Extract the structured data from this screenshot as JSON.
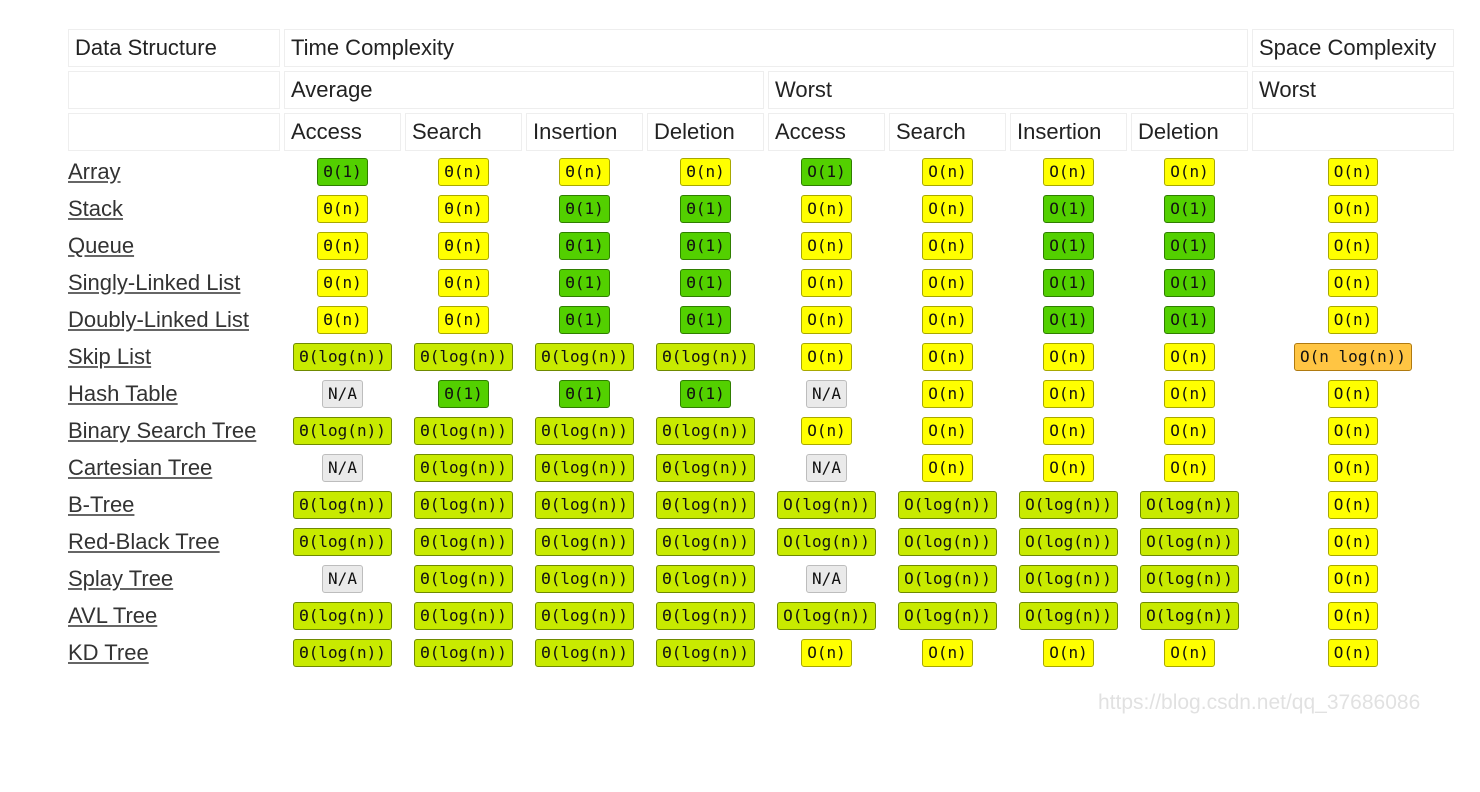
{
  "header": {
    "data_structure": "Data Structure",
    "time_complexity": "Time Complexity",
    "space_complexity": "Space Complexity",
    "average": "Average",
    "worst": "Worst",
    "space_worst": "Worst",
    "ops": [
      "Access",
      "Search",
      "Insertion",
      "Deletion",
      "Access",
      "Search",
      "Insertion",
      "Deletion"
    ]
  },
  "colors": {
    "green": "#53d000",
    "yellow": "#ffff00",
    "yellow_green": "#c8ea00",
    "orange": "#ffc543",
    "gray": "#eaeaea"
  },
  "rows": [
    {
      "name": "Array",
      "cells": [
        [
          "Θ(1)",
          "green"
        ],
        [
          "Θ(n)",
          "yellow"
        ],
        [
          "Θ(n)",
          "yellow"
        ],
        [
          "Θ(n)",
          "yellow"
        ],
        [
          "O(1)",
          "green"
        ],
        [
          "O(n)",
          "yellow"
        ],
        [
          "O(n)",
          "yellow"
        ],
        [
          "O(n)",
          "yellow"
        ],
        [
          "O(n)",
          "yellow"
        ]
      ]
    },
    {
      "name": "Stack",
      "cells": [
        [
          "Θ(n)",
          "yellow"
        ],
        [
          "Θ(n)",
          "yellow"
        ],
        [
          "Θ(1)",
          "green"
        ],
        [
          "Θ(1)",
          "green"
        ],
        [
          "O(n)",
          "yellow"
        ],
        [
          "O(n)",
          "yellow"
        ],
        [
          "O(1)",
          "green"
        ],
        [
          "O(1)",
          "green"
        ],
        [
          "O(n)",
          "yellow"
        ]
      ]
    },
    {
      "name": "Queue",
      "cells": [
        [
          "Θ(n)",
          "yellow"
        ],
        [
          "Θ(n)",
          "yellow"
        ],
        [
          "Θ(1)",
          "green"
        ],
        [
          "Θ(1)",
          "green"
        ],
        [
          "O(n)",
          "yellow"
        ],
        [
          "O(n)",
          "yellow"
        ],
        [
          "O(1)",
          "green"
        ],
        [
          "O(1)",
          "green"
        ],
        [
          "O(n)",
          "yellow"
        ]
      ]
    },
    {
      "name": "Singly-Linked List",
      "cells": [
        [
          "Θ(n)",
          "yellow"
        ],
        [
          "Θ(n)",
          "yellow"
        ],
        [
          "Θ(1)",
          "green"
        ],
        [
          "Θ(1)",
          "green"
        ],
        [
          "O(n)",
          "yellow"
        ],
        [
          "O(n)",
          "yellow"
        ],
        [
          "O(1)",
          "green"
        ],
        [
          "O(1)",
          "green"
        ],
        [
          "O(n)",
          "yellow"
        ]
      ]
    },
    {
      "name": "Doubly-Linked List",
      "cells": [
        [
          "Θ(n)",
          "yellow"
        ],
        [
          "Θ(n)",
          "yellow"
        ],
        [
          "Θ(1)",
          "green"
        ],
        [
          "Θ(1)",
          "green"
        ],
        [
          "O(n)",
          "yellow"
        ],
        [
          "O(n)",
          "yellow"
        ],
        [
          "O(1)",
          "green"
        ],
        [
          "O(1)",
          "green"
        ],
        [
          "O(n)",
          "yellow"
        ]
      ]
    },
    {
      "name": "Skip List",
      "cells": [
        [
          "Θ(log(n))",
          "yg"
        ],
        [
          "Θ(log(n))",
          "yg"
        ],
        [
          "Θ(log(n))",
          "yg"
        ],
        [
          "Θ(log(n))",
          "yg"
        ],
        [
          "O(n)",
          "yellow"
        ],
        [
          "O(n)",
          "yellow"
        ],
        [
          "O(n)",
          "yellow"
        ],
        [
          "O(n)",
          "yellow"
        ],
        [
          "O(n log(n))",
          "orange"
        ]
      ]
    },
    {
      "name": "Hash Table",
      "cells": [
        [
          "N/A",
          "gray"
        ],
        [
          "Θ(1)",
          "green"
        ],
        [
          "Θ(1)",
          "green"
        ],
        [
          "Θ(1)",
          "green"
        ],
        [
          "N/A",
          "gray"
        ],
        [
          "O(n)",
          "yellow"
        ],
        [
          "O(n)",
          "yellow"
        ],
        [
          "O(n)",
          "yellow"
        ],
        [
          "O(n)",
          "yellow"
        ]
      ]
    },
    {
      "name": "Binary Search Tree",
      "cells": [
        [
          "Θ(log(n))",
          "yg"
        ],
        [
          "Θ(log(n))",
          "yg"
        ],
        [
          "Θ(log(n))",
          "yg"
        ],
        [
          "Θ(log(n))",
          "yg"
        ],
        [
          "O(n)",
          "yellow"
        ],
        [
          "O(n)",
          "yellow"
        ],
        [
          "O(n)",
          "yellow"
        ],
        [
          "O(n)",
          "yellow"
        ],
        [
          "O(n)",
          "yellow"
        ]
      ]
    },
    {
      "name": "Cartesian Tree",
      "cells": [
        [
          "N/A",
          "gray"
        ],
        [
          "Θ(log(n))",
          "yg"
        ],
        [
          "Θ(log(n))",
          "yg"
        ],
        [
          "Θ(log(n))",
          "yg"
        ],
        [
          "N/A",
          "gray"
        ],
        [
          "O(n)",
          "yellow"
        ],
        [
          "O(n)",
          "yellow"
        ],
        [
          "O(n)",
          "yellow"
        ],
        [
          "O(n)",
          "yellow"
        ]
      ]
    },
    {
      "name": "B-Tree",
      "cells": [
        [
          "Θ(log(n))",
          "yg"
        ],
        [
          "Θ(log(n))",
          "yg"
        ],
        [
          "Θ(log(n))",
          "yg"
        ],
        [
          "Θ(log(n))",
          "yg"
        ],
        [
          "O(log(n))",
          "yg"
        ],
        [
          "O(log(n))",
          "yg"
        ],
        [
          "O(log(n))",
          "yg"
        ],
        [
          "O(log(n))",
          "yg"
        ],
        [
          "O(n)",
          "yellow"
        ]
      ]
    },
    {
      "name": "Red-Black Tree",
      "cells": [
        [
          "Θ(log(n))",
          "yg"
        ],
        [
          "Θ(log(n))",
          "yg"
        ],
        [
          "Θ(log(n))",
          "yg"
        ],
        [
          "Θ(log(n))",
          "yg"
        ],
        [
          "O(log(n))",
          "yg"
        ],
        [
          "O(log(n))",
          "yg"
        ],
        [
          "O(log(n))",
          "yg"
        ],
        [
          "O(log(n))",
          "yg"
        ],
        [
          "O(n)",
          "yellow"
        ]
      ]
    },
    {
      "name": "Splay Tree",
      "cells": [
        [
          "N/A",
          "gray"
        ],
        [
          "Θ(log(n))",
          "yg"
        ],
        [
          "Θ(log(n))",
          "yg"
        ],
        [
          "Θ(log(n))",
          "yg"
        ],
        [
          "N/A",
          "gray"
        ],
        [
          "O(log(n))",
          "yg"
        ],
        [
          "O(log(n))",
          "yg"
        ],
        [
          "O(log(n))",
          "yg"
        ],
        [
          "O(n)",
          "yellow"
        ]
      ]
    },
    {
      "name": "AVL Tree",
      "cells": [
        [
          "Θ(log(n))",
          "yg"
        ],
        [
          "Θ(log(n))",
          "yg"
        ],
        [
          "Θ(log(n))",
          "yg"
        ],
        [
          "Θ(log(n))",
          "yg"
        ],
        [
          "O(log(n))",
          "yg"
        ],
        [
          "O(log(n))",
          "yg"
        ],
        [
          "O(log(n))",
          "yg"
        ],
        [
          "O(log(n))",
          "yg"
        ],
        [
          "O(n)",
          "yellow"
        ]
      ]
    },
    {
      "name": "KD Tree",
      "cells": [
        [
          "Θ(log(n))",
          "yg"
        ],
        [
          "Θ(log(n))",
          "yg"
        ],
        [
          "Θ(log(n))",
          "yg"
        ],
        [
          "Θ(log(n))",
          "yg"
        ],
        [
          "O(n)",
          "yellow"
        ],
        [
          "O(n)",
          "yellow"
        ],
        [
          "O(n)",
          "yellow"
        ],
        [
          "O(n)",
          "yellow"
        ],
        [
          "O(n)",
          "yellow"
        ]
      ]
    }
  ],
  "watermark": "https://blog.csdn.net/qq_37686086"
}
